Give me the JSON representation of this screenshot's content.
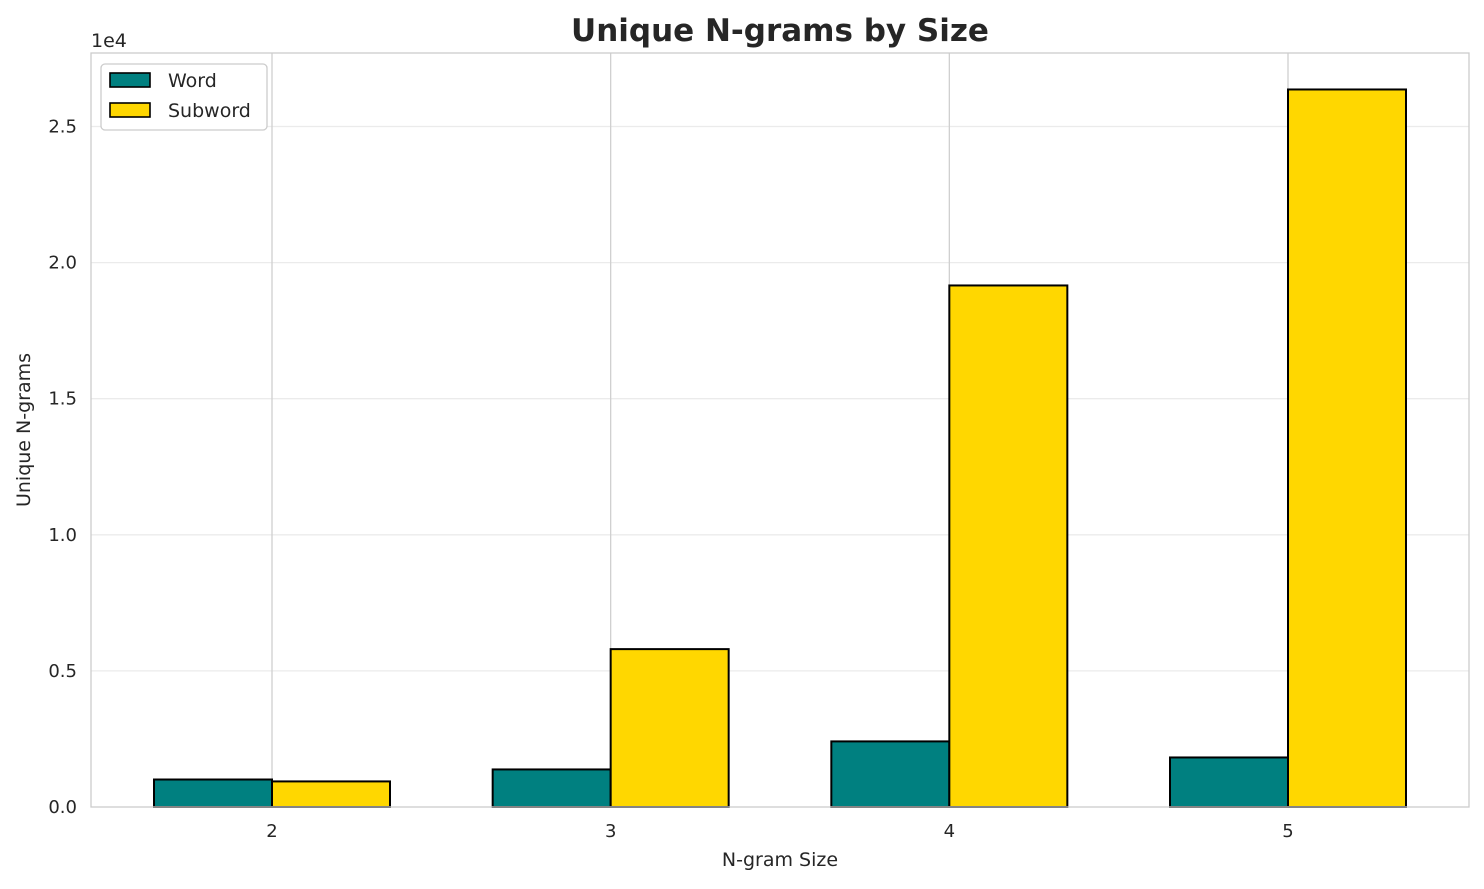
{
  "chart_data": {
    "type": "bar",
    "title": "Unique N-grams by Size",
    "xlabel": "N-gram Size",
    "ylabel": "Unique N-grams",
    "y_offset_label": "1e4",
    "categories": [
      "2",
      "3",
      "4",
      "5"
    ],
    "series": [
      {
        "name": "Word",
        "color": "#008080",
        "values": [
          1010,
          1380,
          2410,
          1820
        ]
      },
      {
        "name": "Subword",
        "color": "#FFD700",
        "values": [
          940,
          5800,
          19160,
          26360
        ]
      }
    ],
    "ylim": [
      0,
      27700
    ],
    "yticks": [
      0,
      5000,
      10000,
      15000,
      20000,
      25000
    ],
    "ytick_labels": [
      "0.0",
      "0.5",
      "1.0",
      "1.5",
      "2.0",
      "2.5"
    ],
    "grid": true,
    "legend": "top-left"
  }
}
